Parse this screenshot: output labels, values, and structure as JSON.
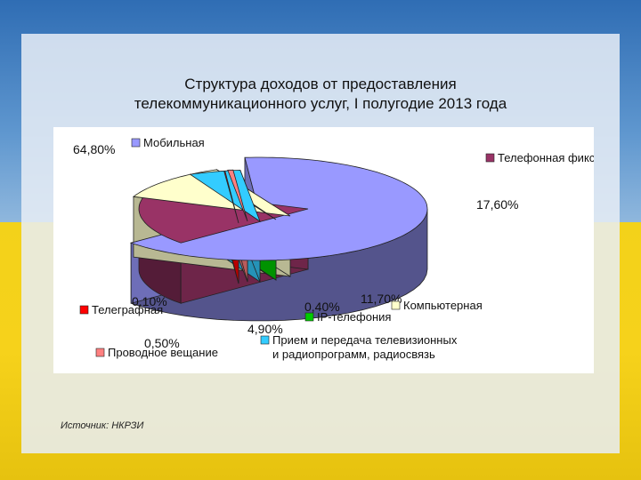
{
  "title": "Структура доходов от предоставления телекоммуникационного услуг, I полугодие 2013 года",
  "title_lines": [
    "Структура доходов от предоставления",
    "телекоммуникационного услуг, I полугодие 2013 года"
  ],
  "source": "Источник: НКРЗИ",
  "chart_data": {
    "type": "pie",
    "style": "3d-exploded",
    "slices": [
      {
        "name": "Мобильная",
        "value": 64.8,
        "label": "64,80%",
        "color": "#9999ff"
      },
      {
        "name": "Телефонная фиксированная",
        "value": 17.6,
        "label": "17,60%",
        "color": "#993366"
      },
      {
        "name": "Компьютерная",
        "value": 11.7,
        "label": "11,70%",
        "color": "#ffffcc"
      },
      {
        "name": "IP-телефония",
        "value": 0.4,
        "label": "0,40%",
        "color": "#00cc00"
      },
      {
        "name": "Прием и передача телевизионных и радиопрограмм, радиосвязь",
        "name_lines": [
          "Прием и передача телевизионных",
          "и радиопрограмм, радиосвязь"
        ],
        "value": 4.9,
        "label": "4,90%",
        "color": "#33ccff"
      },
      {
        "name": "Проводное вещание",
        "value": 0.5,
        "label": "0,50%",
        "color": "#ff8080"
      },
      {
        "name": "Телеграфная",
        "value": 0.1,
        "label": "0,10%",
        "color": "#ff0000"
      }
    ]
  },
  "colors": {
    "flag_blue": "#2f6db4",
    "flag_yellow": "#f3d21a"
  }
}
